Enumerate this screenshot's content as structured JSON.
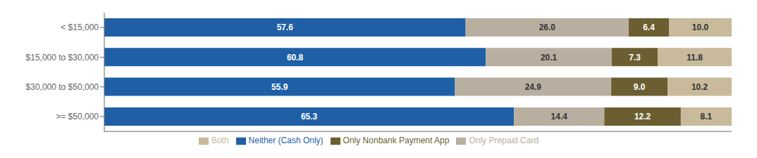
{
  "chart_data": {
    "type": "bar",
    "orientation": "horizontal",
    "stacked": true,
    "categories": [
      "< $15,000",
      "$15,000 to $30,000",
      "$30,000 to $50,000",
      ">= $50,000"
    ],
    "series": [
      {
        "name": "Neither (Cash Only)",
        "color": "#1F5FA6",
        "values": [
          57.6,
          60.8,
          55.9,
          65.3
        ],
        "value_labels": [
          "57.6",
          "60.8",
          "55.9",
          "65.3"
        ]
      },
      {
        "name": "Only Prepaid Card",
        "color": "#B8AFA0",
        "values": [
          26.0,
          20.1,
          24.9,
          14.4
        ],
        "value_labels": [
          "26.0",
          "20.1",
          "24.9",
          "14.4"
        ]
      },
      {
        "name": "Only Nonbank Payment App",
        "color": "#6B5F31",
        "values": [
          6.4,
          7.3,
          9.0,
          12.2
        ],
        "value_labels": [
          "6.4",
          "7.3",
          "9.0",
          "12.2"
        ]
      },
      {
        "name": "Both",
        "color": "#C8BA9A",
        "values": [
          10.0,
          11.8,
          10.2,
          8.1
        ],
        "value_labels": [
          "10.0",
          "11.8",
          "10.2",
          "8.1"
        ]
      }
    ],
    "xlim": [
      0,
      100
    ],
    "data_labels": true,
    "tick_labels": "y",
    "legend": "bottom",
    "grid": false
  }
}
